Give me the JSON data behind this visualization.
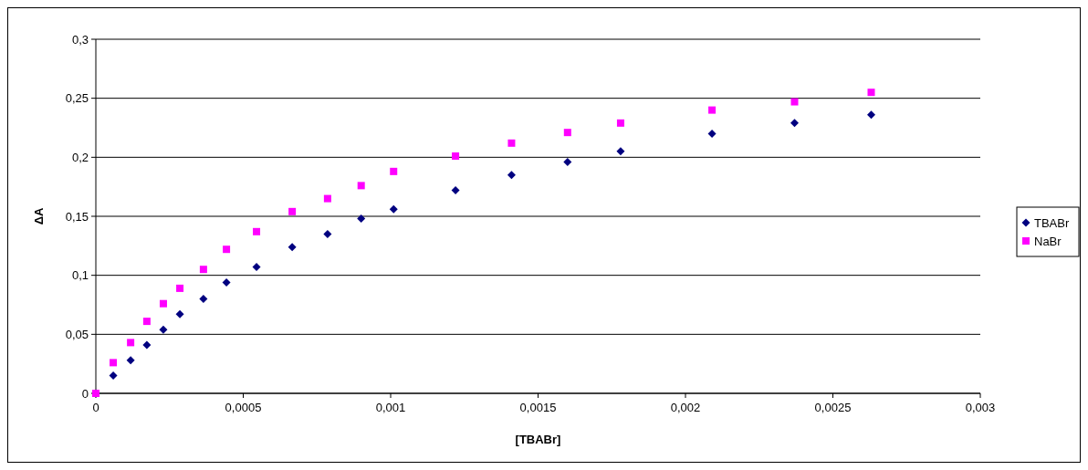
{
  "chart_data": {
    "type": "scatter",
    "xlabel": "[TBABr]",
    "ylabel": "ΔA",
    "xlim": [
      0,
      0.003
    ],
    "ylim": [
      0,
      0.3
    ],
    "xticks": [
      0,
      {
        "value": 0.0005,
        "label": "0,0005"
      },
      {
        "value": 0.001,
        "label": "0,001"
      },
      {
        "value": 0.0015,
        "label": "0,0015"
      },
      {
        "value": 0.002,
        "label": "0,002"
      },
      {
        "value": 0.0025,
        "label": "0,0025"
      },
      {
        "value": 0.003,
        "label": "0,003"
      }
    ],
    "yticks": [
      0,
      {
        "value": 0.05,
        "label": "0,05"
      },
      {
        "value": 0.1,
        "label": "0,1"
      },
      {
        "value": 0.15,
        "label": "0,15"
      },
      {
        "value": 0.2,
        "label": "0,2"
      },
      {
        "value": 0.25,
        "label": "0,25"
      },
      {
        "value": 0.3,
        "label": "0,3"
      }
    ],
    "grid": "y",
    "legend": "right",
    "x": [
      0,
      5.9e-05,
      0.000118,
      0.000173,
      0.000229,
      0.000285,
      0.000365,
      0.000443,
      0.000545,
      0.000666,
      0.000786,
      0.0009,
      0.00101,
      0.00122,
      0.00141,
      0.0016,
      0.00178,
      0.00209,
      0.00237,
      0.00263
    ],
    "series": [
      {
        "name": "TBABr",
        "color": "#000080",
        "marker": "diamond",
        "values": [
          0,
          0.015,
          0.028,
          0.041,
          0.054,
          0.067,
          0.08,
          0.094,
          0.107,
          0.124,
          0.135,
          0.148,
          0.156,
          0.172,
          0.185,
          0.196,
          0.205,
          0.22,
          0.229,
          0.236
        ]
      },
      {
        "name": "NaBr",
        "color": "#ff00ff",
        "marker": "square",
        "values": [
          0,
          0.026,
          0.043,
          0.061,
          0.076,
          0.089,
          0.105,
          0.122,
          0.137,
          0.154,
          0.165,
          0.176,
          0.188,
          0.201,
          0.212,
          0.221,
          0.229,
          0.24,
          0.247,
          0.255
        ]
      }
    ]
  }
}
